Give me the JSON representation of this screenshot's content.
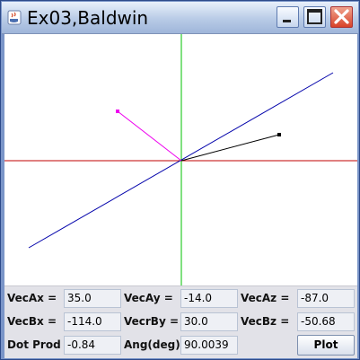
{
  "window": {
    "title": "Ex03,Baldwin"
  },
  "colors": {
    "x_axis": "#c00000",
    "y_axis": "#00c000",
    "vector_a": "#ee00ee",
    "vector_b": "#000000",
    "line": "#0000aa"
  },
  "panel": {
    "row1": [
      {
        "label": "VecAx =",
        "value": "35.0"
      },
      {
        "label": "VecAy =",
        "value": "-14.0"
      },
      {
        "label": "VecAz =",
        "value": "-87.0"
      }
    ],
    "row2": [
      {
        "label": "VecBx =",
        "value": "-114.0"
      },
      {
        "label": "VecrBy =",
        "value": "30.0"
      },
      {
        "label": "VecBz =",
        "value": "-50.68"
      }
    ],
    "row3": {
      "dot_label": "Dot Prod =",
      "dot_value": "-0.84",
      "ang_label": "Ang(deg)",
      "ang_value": "90.0039",
      "plot_button": "Plot"
    }
  }
}
